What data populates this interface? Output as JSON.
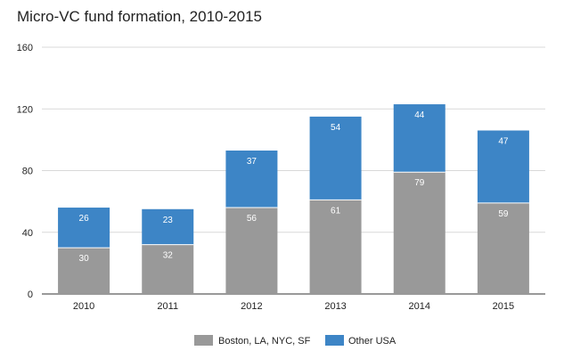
{
  "chart_data": {
    "type": "bar",
    "stacked": true,
    "title": "Micro-VC fund formation, 2010-2015",
    "xlabel": "",
    "ylabel": "",
    "categories": [
      "2010",
      "2011",
      "2012",
      "2013",
      "2014",
      "2015"
    ],
    "series": [
      {
        "name": "Boston, LA, NYC, SF",
        "color": "#999999",
        "values": [
          30,
          32,
          56,
          61,
          79,
          59
        ]
      },
      {
        "name": "Other USA",
        "color": "#3d85c6",
        "values": [
          26,
          23,
          37,
          54,
          44,
          47
        ]
      }
    ],
    "ylim": [
      0,
      160
    ],
    "yticks": [
      0,
      40,
      80,
      120,
      160
    ],
    "grid": true,
    "data_labels": true,
    "legend_position": "bottom"
  }
}
